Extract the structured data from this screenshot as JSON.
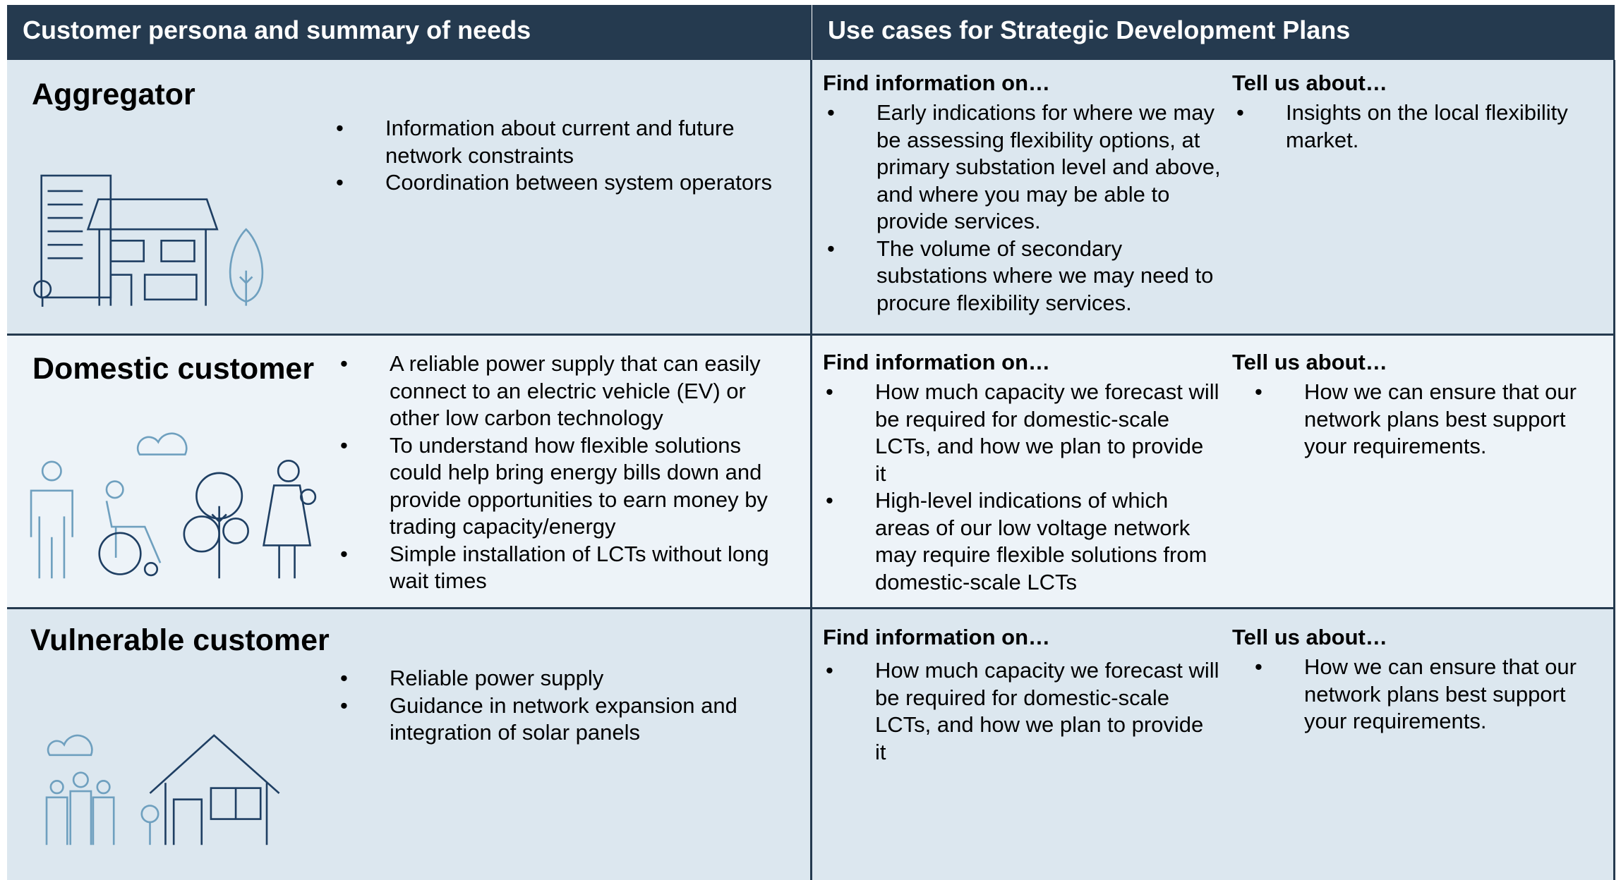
{
  "header": {
    "left": "Customer persona and summary of needs",
    "right": "Use cases for Strategic Development Plans"
  },
  "rows": [
    {
      "persona": "Aggregator",
      "needs": [
        "Information about current and future network constraints",
        "Coordination between system operators"
      ],
      "find_heading": "Find information on…",
      "find_items": [
        "Early indications for where we may be assessing flexibility options, at primary substation level and above, and where you may be able to provide services.",
        "The volume of secondary substations where we may need to procure flexibility services."
      ],
      "tell_heading": "Tell us about…",
      "tell_items": [
        "Insights on the local flexibility market."
      ]
    },
    {
      "persona": "Domestic customer",
      "needs": [
        "A reliable power supply that can easily connect to an electric vehicle (EV) or other low carbon technology",
        "To understand how flexible solutions could help bring energy bills down and provide opportunities to earn money by trading capacity/energy",
        "Simple installation of LCTs without long wait times"
      ],
      "find_heading": "Find information on…",
      "find_items": [
        "How much capacity we forecast will be required for domestic-scale LCTs, and how we plan to provide it",
        "High-level indications of which areas of our low voltage network may require flexible solutions from domestic-scale LCTs"
      ],
      "tell_heading": "Tell us about…",
      "tell_items": [
        "How we can ensure that our network plans best support your requirements."
      ]
    },
    {
      "persona": "Vulnerable customer",
      "needs": [
        "Reliable power supply",
        "Guidance in network expansion and integration of solar panels"
      ],
      "find_heading": "Find information on…",
      "find_items": [
        "How much capacity we forecast will be required for domestic-scale LCTs, and how we plan to provide it"
      ],
      "tell_heading": "Tell us about…",
      "tell_items": [
        "How we can ensure that our network plans best support your requirements."
      ]
    }
  ]
}
